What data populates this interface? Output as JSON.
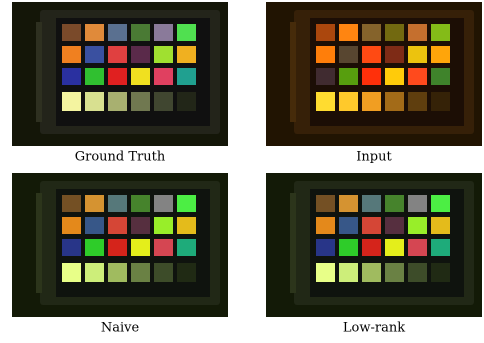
{
  "panels": [
    {
      "caption": "Ground Truth"
    },
    {
      "caption": "Input"
    },
    {
      "caption": "Naive"
    },
    {
      "caption": "Low-rank"
    }
  ]
}
